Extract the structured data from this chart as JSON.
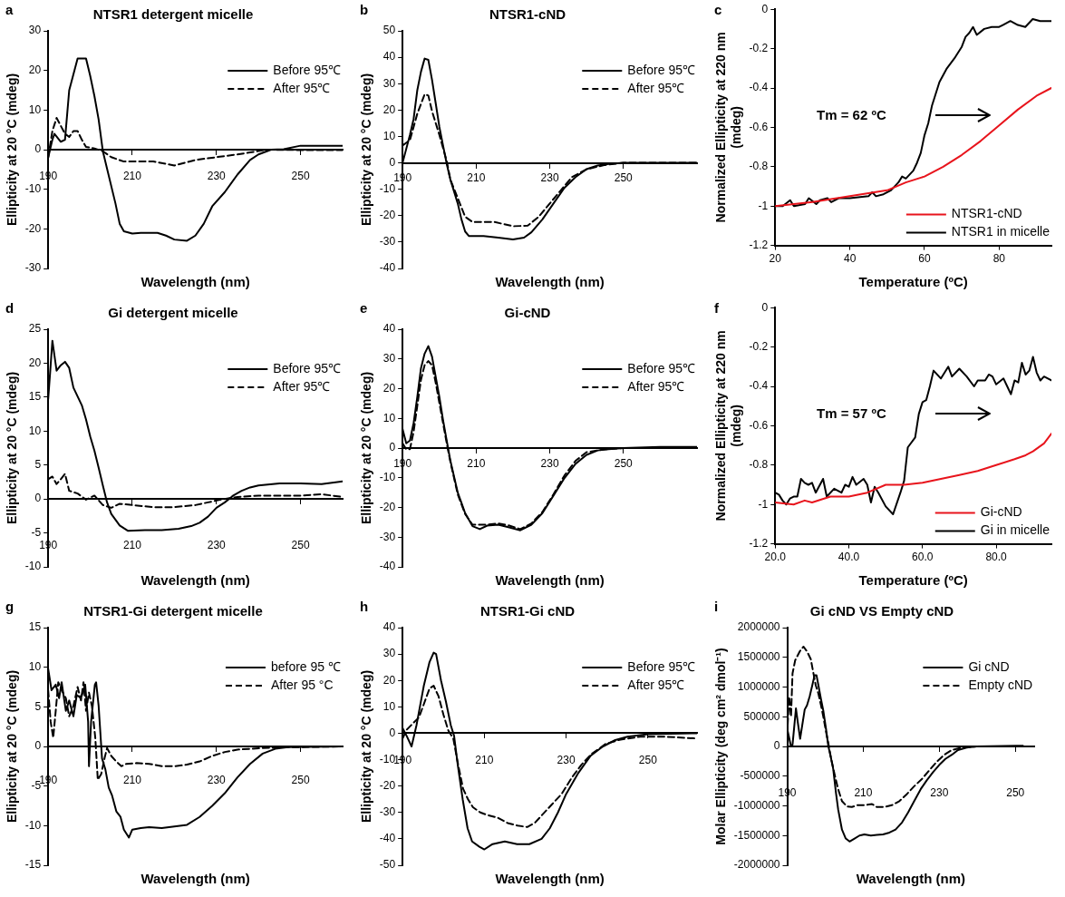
{
  "chart_data": [
    {
      "type": "line",
      "title": "NTSR1 detergent micelle",
      "xlabel": "Wavelength (nm)",
      "ylabel": "Ellipticity at 20 °C (mdeg)",
      "annotations": [
        "a"
      ],
      "legend": "top right",
      "xlim": [
        190,
        260
      ],
      "xticks": [
        190,
        210,
        230,
        250
      ],
      "ylim": [
        -30,
        30
      ],
      "yticks": [
        -30,
        -20,
        -10,
        0,
        10,
        20,
        30
      ],
      "series": [
        {
          "name": "Before 95℃",
          "color": "#000000",
          "line_style": "solid",
          "x": [
            190,
            191,
            191.5,
            193,
            194,
            195,
            196,
            197,
            199,
            200,
            201,
            202,
            203,
            204,
            206,
            207,
            208,
            210,
            212,
            216,
            218,
            220,
            223,
            225,
            227,
            229,
            232,
            235,
            238,
            240,
            243,
            246,
            250,
            260
          ],
          "values": [
            -2,
            2.5,
            4,
            2,
            2.5,
            15,
            19,
            23,
            23,
            18.6,
            13.5,
            7.6,
            -0.4,
            -4.8,
            -13.6,
            -18.7,
            -20.6,
            -21.2,
            -21,
            -21,
            -21.7,
            -22.7,
            -23,
            -21.7,
            -18.7,
            -14.3,
            -10.7,
            -6.3,
            -2.6,
            -1.2,
            0,
            0.1,
            1,
            1
          ]
        },
        {
          "name": "After 95℃",
          "color": "#000000",
          "line_style": "dashed",
          "x": [
            190,
            191,
            192,
            193,
            194,
            195,
            196,
            197,
            198,
            199,
            201,
            203,
            205,
            208,
            215,
            220,
            225,
            230,
            235,
            238,
            242,
            250,
            260
          ],
          "values": [
            -2,
            4.7,
            8,
            6,
            4,
            3.2,
            4.7,
            4.7,
            2.5,
            0.7,
            0.3,
            -0.4,
            -1.9,
            -3,
            -3,
            -4,
            -2.6,
            -1.9,
            -1.2,
            -0.7,
            0,
            -0.1,
            -0.1
          ]
        }
      ]
    },
    {
      "type": "line",
      "title": "NTSR1-cND",
      "xlabel": "Wavelength (nm)",
      "ylabel": "Ellipticity at 20 °C (mdeg)",
      "annotations": [
        "b"
      ],
      "legend": "top right",
      "xlim": [
        190,
        270
      ],
      "xticks": [
        190,
        210,
        230,
        250
      ],
      "ylim": [
        -40,
        50
      ],
      "yticks": [
        -40,
        -30,
        -20,
        -10,
        0,
        10,
        20,
        30,
        40,
        50
      ],
      "series": [
        {
          "name": "Before 95℃",
          "color": "#000000",
          "line_style": "solid",
          "x": [
            190,
            192,
            193,
            194,
            195,
            196,
            197,
            198,
            199,
            200,
            201,
            202,
            203,
            205,
            206,
            207,
            208,
            212,
            216,
            220,
            223,
            225,
            228,
            231,
            234,
            237,
            240,
            243,
            246,
            250,
            270
          ],
          "values": [
            0,
            10.6,
            16.6,
            27.5,
            34.5,
            39.5,
            39,
            31.5,
            22.6,
            13.6,
            6.6,
            -0.4,
            -6.4,
            -15.4,
            -21.4,
            -26,
            -27.7,
            -27.7,
            -28.3,
            -29,
            -28.3,
            -26.3,
            -21.4,
            -15.4,
            -9.4,
            -5.4,
            -2.4,
            -1,
            -0.4,
            0,
            0
          ]
        },
        {
          "name": "After 95℃",
          "color": "#000000",
          "line_style": "dashed",
          "x": [
            190,
            192,
            194,
            196,
            197,
            198,
            200,
            202,
            203,
            205,
            207,
            209,
            215,
            220,
            224,
            227,
            230,
            233,
            236,
            240,
            245,
            250,
            270
          ],
          "values": [
            6.6,
            8.6,
            18.6,
            26,
            25.5,
            19.6,
            10.6,
            0.6,
            -6.4,
            -13.4,
            -20.4,
            -22.4,
            -22.4,
            -24,
            -23.8,
            -20.4,
            -15.4,
            -10.4,
            -5.4,
            -2.4,
            -0.8,
            0,
            0
          ]
        }
      ]
    },
    {
      "type": "line",
      "xlabel": "Temperature (ºC)",
      "ylabel": "Normalized Ellipticity at 220 nm (mdeg)",
      "annotations": [
        "c",
        "Tm = 62 ºC"
      ],
      "legend": "bottom right",
      "xlim": [
        20,
        94
      ],
      "xticks": [
        20,
        40,
        60,
        80
      ],
      "ylim": [
        -1.2,
        0
      ],
      "yticks": [
        -1.2,
        -1,
        -0.8,
        -0.6,
        -0.4,
        -0.2,
        0
      ],
      "series": [
        {
          "name": "NTSR1-cND",
          "color": "#e8141c",
          "line_style": "solid",
          "x": [
            20,
            30,
            40,
            50,
            55,
            60,
            65,
            70,
            75,
            80,
            85,
            90,
            94
          ],
          "values": [
            -1,
            -0.98,
            -0.95,
            -0.92,
            -0.88,
            -0.85,
            -0.8,
            -0.74,
            -0.67,
            -0.59,
            -0.51,
            -0.44,
            -0.4
          ]
        },
        {
          "name": "NTSR1 in micelle",
          "color": "#000000",
          "line_style": "solid",
          "x": [
            20,
            22,
            24,
            25,
            28,
            29,
            31,
            32,
            34,
            35,
            37,
            40,
            45,
            46,
            47,
            49,
            51,
            53,
            54,
            55,
            57,
            58,
            59,
            60,
            61,
            62,
            63,
            64,
            66,
            68,
            70,
            71,
            72,
            73,
            74,
            76,
            78,
            80,
            81,
            83,
            85,
            87,
            89,
            91,
            94
          ],
          "values": [
            -1,
            -1,
            -0.97,
            -1,
            -0.99,
            -0.96,
            -0.99,
            -0.97,
            -0.96,
            -0.98,
            -0.96,
            -0.96,
            -0.95,
            -0.93,
            -0.95,
            -0.94,
            -0.92,
            -0.88,
            -0.85,
            -0.86,
            -0.82,
            -0.78,
            -0.73,
            -0.64,
            -0.58,
            -0.49,
            -0.43,
            -0.37,
            -0.3,
            -0.25,
            -0.19,
            -0.14,
            -0.12,
            -0.09,
            -0.13,
            -0.1,
            -0.09,
            -0.09,
            -0.08,
            -0.06,
            -0.08,
            -0.09,
            -0.05,
            -0.06,
            -0.06
          ]
        }
      ]
    },
    {
      "type": "line",
      "title": "Gi detergent micelle",
      "xlabel": "Wavelength (nm)",
      "ylabel": "Ellipticity at 20 °C (mdeg)",
      "annotations": [
        "d"
      ],
      "legend": "top right",
      "xlim": [
        190,
        260
      ],
      "xticks": [
        190,
        210,
        230,
        250
      ],
      "ylim": [
        -10,
        25
      ],
      "yticks": [
        -10,
        -5,
        0,
        5,
        10,
        15,
        20,
        25
      ],
      "series": [
        {
          "name": "Before 95℃",
          "color": "#000000",
          "line_style": "solid",
          "x": [
            190,
            190.5,
            191,
            192,
            193,
            194,
            195,
            196,
            197,
            198,
            199,
            200,
            201,
            202,
            203,
            204,
            205,
            207,
            209,
            213,
            217,
            221,
            224,
            226,
            228,
            230,
            232,
            234,
            236,
            238,
            240,
            245,
            250,
            255,
            260
          ],
          "values": [
            14.7,
            18.9,
            23.3,
            18.9,
            19.7,
            20.2,
            19.3,
            16.4,
            15.1,
            13.8,
            11.7,
            9.2,
            7.1,
            4.6,
            2,
            -0.5,
            -2.2,
            -3.9,
            -4.7,
            -4.6,
            -4.6,
            -4.4,
            -4,
            -3.5,
            -2.6,
            -1.3,
            -0.5,
            0.5,
            1.2,
            1.7,
            2,
            2.3,
            2.3,
            2.2,
            2.6
          ]
        },
        {
          "name": "After 95℃",
          "color": "#000000",
          "line_style": "dashed",
          "x": [
            190,
            191,
            192,
            193,
            194,
            195,
            197,
            199,
            201,
            203,
            205,
            207,
            210,
            215,
            220,
            225,
            228,
            231,
            235,
            240,
            250,
            255,
            260
          ],
          "values": [
            2.9,
            3.3,
            2.2,
            2.9,
            3.7,
            1.2,
            0.8,
            -0.1,
            0.5,
            -0.9,
            -1.3,
            -0.7,
            -0.9,
            -1.2,
            -1.2,
            -0.9,
            -0.5,
            -0.1,
            0.3,
            0.5,
            0.5,
            0.7,
            0.3
          ]
        }
      ]
    },
    {
      "type": "line",
      "title": "Gi-cND",
      "xlabel": "Wavelength (nm)",
      "ylabel": "Ellipticity at 20 °C (mdeg)",
      "annotations": [
        "e"
      ],
      "legend": "top right",
      "xlim": [
        190,
        270
      ],
      "xticks": [
        190,
        210,
        230,
        250
      ],
      "ylim": [
        -40,
        40
      ],
      "yticks": [
        -40,
        -30,
        -20,
        -10,
        0,
        10,
        20,
        30,
        40
      ],
      "series": [
        {
          "name": "Before 95℃",
          "color": "#000000",
          "line_style": "solid",
          "x": [
            190,
            191,
            192,
            193,
            194,
            195,
            196,
            197,
            198,
            199,
            200,
            201,
            202,
            203,
            205,
            207,
            209,
            211,
            213,
            216,
            219,
            222,
            225,
            228,
            231,
            234,
            237,
            240,
            243,
            246,
            250,
            260,
            270
          ],
          "values": [
            6.4,
            1.6,
            2.5,
            8.4,
            17.2,
            26.9,
            31.8,
            34.3,
            30.8,
            24,
            17.2,
            9.4,
            2.5,
            -4.3,
            -15,
            -21.9,
            -26.3,
            -27.3,
            -26.1,
            -25.8,
            -26.7,
            -27.7,
            -25.8,
            -21.9,
            -16,
            -10.1,
            -5.3,
            -2.3,
            -0.8,
            -0.4,
            0,
            0.4,
            0.4
          ]
        },
        {
          "name": "After 95℃",
          "color": "#000000",
          "line_style": "dashed",
          "x": [
            190,
            191,
            192,
            193,
            194,
            195,
            196,
            197,
            198,
            199,
            200,
            201,
            202,
            203,
            205,
            207,
            209,
            213,
            216,
            219,
            222,
            225,
            228,
            231,
            234,
            237,
            240,
            245,
            250,
            270
          ],
          "values": [
            1.6,
            -0.4,
            -0.4,
            5.5,
            14.2,
            23,
            27.9,
            29.3,
            27.9,
            22,
            15.2,
            8.4,
            1.6,
            -4.7,
            -15.6,
            -22.2,
            -25.8,
            -25.8,
            -25.4,
            -26.1,
            -27.3,
            -25.4,
            -21.5,
            -15.6,
            -9.2,
            -4.3,
            -1.4,
            -0.4,
            0,
            0
          ]
        }
      ]
    },
    {
      "type": "line",
      "xlabel": "Temperature (ºC)",
      "ylabel": "Normalized Ellipticity at 220 nm (mdeg)",
      "annotations": [
        "f",
        "Tm = 57 ºC"
      ],
      "legend": "bottom right",
      "xlim": [
        20,
        95
      ],
      "xticks": [
        {
          "value": 20,
          "label": "20.0"
        },
        {
          "value": 40,
          "label": "40.0"
        },
        {
          "value": 60,
          "label": "60.0"
        },
        {
          "value": 80,
          "label": "80.0"
        }
      ],
      "ylim": [
        -1.2,
        0
      ],
      "yticks": [
        -1.2,
        -1,
        -0.8,
        -0.6,
        -0.4,
        -0.2,
        0
      ],
      "series": [
        {
          "name": "Gi-cND",
          "color": "#e8141c",
          "line_style": "solid",
          "x": [
            20,
            25,
            28,
            30,
            35,
            40,
            45,
            50,
            55,
            60,
            65,
            70,
            75,
            80,
            85,
            88,
            90,
            93,
            95
          ],
          "values": [
            -0.99,
            -1,
            -0.98,
            -0.99,
            -0.96,
            -0.96,
            -0.94,
            -0.9,
            -0.9,
            -0.89,
            -0.87,
            -0.85,
            -0.83,
            -0.8,
            -0.77,
            -0.75,
            -0.73,
            -0.69,
            -0.64
          ]
        },
        {
          "name": "Gi in micelle",
          "color": "#000000",
          "line_style": "solid",
          "x": [
            20,
            21,
            22,
            23,
            24,
            25,
            26,
            27,
            28,
            29,
            30,
            31,
            33,
            34,
            36,
            38,
            39,
            40,
            41,
            42,
            44,
            45,
            46,
            47,
            48,
            50,
            52,
            54,
            55,
            56,
            58,
            59,
            60,
            61,
            62,
            63,
            65,
            67,
            68,
            70,
            72,
            74,
            75,
            77,
            78,
            79,
            80,
            82,
            83,
            84,
            85,
            86,
            87,
            88,
            89,
            90,
            91,
            92,
            93,
            95
          ],
          "values": [
            -0.94,
            -0.95,
            -0.98,
            -1,
            -0.97,
            -0.96,
            -0.96,
            -0.87,
            -0.89,
            -0.9,
            -0.89,
            -0.94,
            -0.87,
            -0.96,
            -0.92,
            -0.94,
            -0.9,
            -0.91,
            -0.86,
            -0.9,
            -0.87,
            -0.9,
            -0.99,
            -0.91,
            -0.94,
            -1.01,
            -1.05,
            -0.94,
            -0.88,
            -0.71,
            -0.66,
            -0.54,
            -0.48,
            -0.47,
            -0.4,
            -0.32,
            -0.36,
            -0.3,
            -0.35,
            -0.31,
            -0.35,
            -0.4,
            -0.37,
            -0.37,
            -0.34,
            -0.35,
            -0.39,
            -0.36,
            -0.4,
            -0.44,
            -0.37,
            -0.38,
            -0.28,
            -0.34,
            -0.32,
            -0.25,
            -0.33,
            -0.37,
            -0.35,
            -0.37
          ]
        }
      ]
    },
    {
      "type": "line",
      "title": "NTSR1-Gi detergent micelle",
      "xlabel": "Wavelength (nm)",
      "ylabel": "Ellipticity at 20 °C (mdeg)",
      "annotations": [
        "g"
      ],
      "legend": "top right",
      "xlim": [
        190,
        260
      ],
      "xticks": [
        190,
        210,
        230,
        250
      ],
      "ylim": [
        -15,
        15
      ],
      "yticks": [
        -15,
        -10,
        -5,
        0,
        5,
        10,
        15
      ],
      "series": [
        {
          "name": "before 95 ℃",
          "color": "#000000",
          "line_style": "solid",
          "x": [
            190,
            190.8,
            191.8,
            192.6,
            193.2,
            194.2,
            195,
            196,
            196.8,
            197.8,
            198.8,
            199.5,
            199.7,
            200.2,
            201.1,
            201.4,
            202,
            202.8,
            203.6,
            204.4,
            205.2,
            206.2,
            207.2,
            208,
            209.2,
            210,
            212,
            214,
            217,
            220,
            223,
            226,
            229,
            232,
            235,
            238,
            241,
            244,
            247,
            260
          ],
          "values": [
            9.8,
            7.1,
            7.8,
            6.1,
            8.1,
            4.5,
            5.8,
            3.8,
            6.5,
            6.1,
            7.8,
            3.1,
            -2.5,
            3.1,
            7.8,
            8.1,
            5.1,
            -1.5,
            -2.9,
            -5.2,
            -6.2,
            -8.2,
            -8.9,
            -10.5,
            -11.5,
            -10.5,
            -10.3,
            -10.2,
            -10.3,
            -10.1,
            -9.9,
            -8.9,
            -7.5,
            -5.9,
            -3.9,
            -2.2,
            -0.9,
            -0.3,
            -0.1,
            0
          ]
        },
        {
          "name": "After 95 °C",
          "color": "#000000",
          "line_style": "dashed",
          "x": [
            190,
            190.6,
            191.2,
            191.8,
            192.4,
            193.2,
            194.2,
            195,
            196,
            197,
            197.8,
            198.4,
            199,
            199.7,
            200.4,
            201.2,
            201.8,
            202.6,
            203.4,
            204,
            205,
            206.2,
            207.4,
            208.6,
            211,
            214,
            217,
            220,
            223,
            226,
            229,
            232,
            235,
            241,
            247,
            260
          ],
          "values": [
            7.1,
            3.1,
            1.1,
            4.5,
            8.1,
            7.1,
            6.1,
            3.8,
            5.1,
            7.5,
            5.8,
            8.1,
            4.5,
            6.8,
            5.1,
            1.1,
            -4.2,
            -3.5,
            -1.5,
            -0.2,
            -1.2,
            -1.9,
            -2.5,
            -2.2,
            -2.1,
            -2.2,
            -2.5,
            -2.5,
            -2.3,
            -1.9,
            -1.2,
            -0.7,
            -0.4,
            -0.2,
            -0.1,
            0
          ]
        }
      ]
    },
    {
      "type": "line",
      "title": "NTSR1-Gi cND",
      "xlabel": "Wavelength (nm)",
      "ylabel": "Ellipticity at 20 °C (mdeg)",
      "annotations": [
        "h"
      ],
      "legend": "top right",
      "xlim": [
        190,
        262
      ],
      "xticks": [
        190,
        210,
        230,
        250
      ],
      "ylim": [
        -50,
        40
      ],
      "yticks": [
        -50,
        -40,
        -30,
        -20,
        -10,
        0,
        10,
        20,
        30,
        40
      ],
      "series": [
        {
          "name": "Before 95℃",
          "color": "#000000",
          "line_style": "solid",
          "x": [
            190,
            191,
            192.2,
            193.4,
            194,
            195.2,
            196.6,
            197.6,
            198.2,
            199.4,
            200.6,
            201.8,
            202.6,
            203.5,
            204.7,
            205.9,
            207,
            208.8,
            210,
            212,
            215,
            218,
            221,
            224,
            226,
            228,
            230,
            233,
            236,
            239,
            242,
            245,
            250,
            262
          ],
          "values": [
            2,
            -1,
            -5,
            3,
            8,
            18,
            27,
            30.5,
            30,
            20,
            12,
            3,
            -1,
            -12,
            -25,
            -36,
            -41,
            -43,
            -44,
            -42,
            -41,
            -42,
            -42,
            -40,
            -36,
            -30,
            -23,
            -15,
            -8.5,
            -5,
            -2.6,
            -1.3,
            -0.4,
            0
          ]
        },
        {
          "name": "After 95℃",
          "color": "#000000",
          "line_style": "dashed",
          "x": [
            190,
            191,
            192.4,
            194,
            195.2,
            196.6,
            197.6,
            198.8,
            200,
            201.2,
            202.4,
            203.6,
            204.8,
            206,
            207.2,
            209,
            210.8,
            213.3,
            215.7,
            218.1,
            220.5,
            222.3,
            224.1,
            226.5,
            228.9,
            231.3,
            233.7,
            236.1,
            239.7,
            243.3,
            248.2,
            254.2,
            262
          ],
          "values": [
            -2,
            1.3,
            3.5,
            6,
            11,
            17,
            18,
            14,
            7,
            1,
            -2,
            -12,
            -21,
            -25,
            -28,
            -30,
            -31,
            -32,
            -34,
            -35,
            -35.5,
            -34,
            -31,
            -27,
            -23,
            -17,
            -12,
            -8,
            -4,
            -2.4,
            -1.3,
            -1.3,
            -2
          ]
        }
      ]
    },
    {
      "type": "line",
      "title": "Gi cND VS Empty cND",
      "xlabel": "Wavelength (nm)",
      "ylabel": "Molar Ellipticity (deg cm² dmol⁻¹)",
      "annotations": [
        "i"
      ],
      "legend": "top right",
      "xlim": [
        190,
        255
      ],
      "xticks": [
        190,
        210,
        230,
        250
      ],
      "ylim": [
        -2000000,
        2000000
      ],
      "yticks": [
        -2000000,
        -1500000,
        -1000000,
        -500000,
        0,
        500000,
        1000000,
        1500000,
        2000000
      ],
      "series": [
        {
          "name": "Gi cND",
          "color": "#000000",
          "line_style": "solid",
          "x": [
            190,
            190.5,
            191,
            191.4,
            192.3,
            192.8,
            193.4,
            194.6,
            195.2,
            195.9,
            196.6,
            197.2,
            197.7,
            198.2,
            198.9,
            199.5,
            200.2,
            200.8,
            201.5,
            202.1,
            202.8,
            203.4,
            204.4,
            205.4,
            206.4,
            207.7,
            209,
            210.3,
            212,
            213.6,
            215.2,
            216.9,
            218.5,
            220.2,
            221.8,
            223.4,
            225.1,
            226.7,
            228.4,
            230,
            231.6,
            233.3,
            234.9,
            237.2,
            239.8,
            250.3,
            252
          ],
          "values": [
            300000,
            150000,
            0,
            30000,
            640000,
            400000,
            130000,
            620000,
            690000,
            840000,
            1030000,
            1200000,
            1200000,
            1030000,
            790000,
            600000,
            300000,
            10000,
            -190000,
            -380000,
            -770000,
            -1060000,
            -1400000,
            -1550000,
            -1600000,
            -1550000,
            -1500000,
            -1480000,
            -1500000,
            -1490000,
            -1480000,
            -1450000,
            -1400000,
            -1280000,
            -1110000,
            -920000,
            -720000,
            -570000,
            -430000,
            -310000,
            -210000,
            -140000,
            -60000,
            -20000,
            0,
            10000,
            10000
          ]
        },
        {
          "name": "Empty cND",
          "color": "#000000",
          "line_style": "dashed",
          "x": [
            190,
            190.5,
            191,
            191.4,
            192.1,
            193.3,
            194.3,
            195.2,
            196.2,
            196.9,
            197.5,
            198.2,
            198.9,
            199.5,
            200.2,
            200.8,
            201.5,
            202.5,
            203.4,
            204.4,
            205.7,
            207,
            208.4,
            210.3,
            212.3,
            213.6,
            215.6,
            217.5,
            219.5,
            221.5,
            223.4,
            225.4,
            227.4,
            229.3,
            231.3,
            233.3,
            235.9,
            239.8,
            252
          ],
          "values": [
            200000,
            840000,
            500000,
            1230000,
            1450000,
            1600000,
            1680000,
            1600000,
            1470000,
            1230000,
            1030000,
            890000,
            690000,
            500000,
            250000,
            60000,
            -190000,
            -480000,
            -720000,
            -920000,
            -1010000,
            -1020000,
            -990000,
            -990000,
            -970000,
            -1020000,
            -1020000,
            -990000,
            -920000,
            -800000,
            -670000,
            -550000,
            -400000,
            -260000,
            -140000,
            -60000,
            -20000,
            0,
            0
          ]
        }
      ]
    }
  ]
}
